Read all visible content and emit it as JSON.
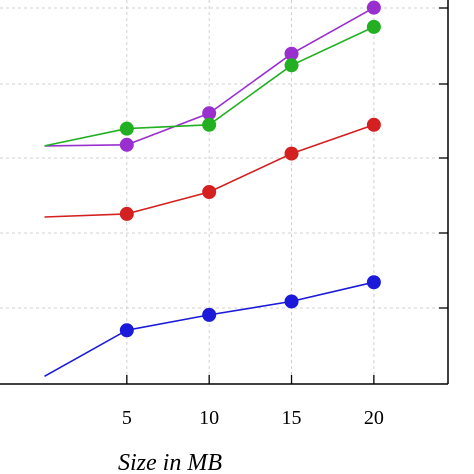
{
  "chart_data": {
    "type": "line",
    "title": "",
    "xlabel": "Size in MB",
    "ylabel": "",
    "x": [
      0,
      5,
      10,
      15,
      20
    ],
    "x_ticks": [
      5,
      10,
      15,
      20
    ],
    "x_tick_labels": [
      "5",
      "10",
      "15",
      "20"
    ],
    "xlim": [
      -2.7,
      24.5
    ],
    "ylim": [
      0,
      100
    ],
    "grid": true,
    "series": [
      {
        "color": "#9a2fd0",
        "values": [
          62.0,
          62.3,
          70.5,
          86.0,
          98.0
        ],
        "markers_from_index": 1
      },
      {
        "color": "#22b022",
        "values": [
          62.0,
          66.5,
          67.5,
          83.0,
          93.0
        ],
        "markers_from_index": 1
      },
      {
        "color": "#d42020",
        "values": [
          43.5,
          44.3,
          50.0,
          60.0,
          67.5
        ],
        "markers_from_index": 1
      },
      {
        "color": "#1a1ad8",
        "values": [
          2.0,
          14.0,
          18.0,
          21.5,
          26.5
        ],
        "markers_from_index": 1
      }
    ]
  }
}
